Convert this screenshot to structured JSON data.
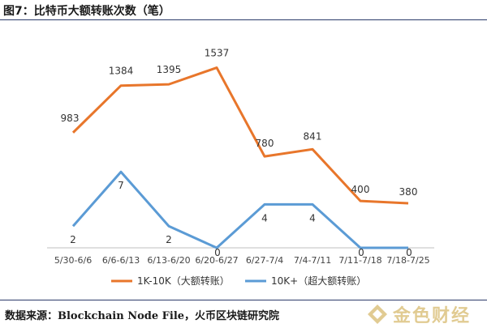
{
  "title": "图7：比特币大额转账次数（笔）",
  "source": "数据来源：Blockchain Node File，火币区块链研究院",
  "watermark": {
    "text": "金色财经",
    "icon": "golden-finance-logo-icon"
  },
  "colors": {
    "orange": "#E8762B",
    "blue": "#5B9BD5",
    "axis": "#bfbfbf"
  },
  "chart_data": {
    "type": "line",
    "categories": [
      "5/30-6/6",
      "6/6-6/13",
      "6/13-6/20",
      "6/20-6/27",
      "6/27-7/4",
      "7/4-7/11",
      "7/11-7/18",
      "7/18-7/25"
    ],
    "ylim": [
      0,
      1700
    ],
    "grid": false,
    "legend_position": "bottom",
    "series": [
      {
        "name": "1K-10K（大额转账）",
        "color": "#E8762B",
        "values": [
          983,
          1384,
          1395,
          1537,
          780,
          841,
          400,
          380
        ],
        "labels": [
          "983",
          "1384",
          "1395",
          "1537",
          "780",
          "841",
          "400",
          "380"
        ]
      },
      {
        "name": "10K+（超大额转账）",
        "color": "#5B9BD5",
        "values": [
          2,
          7,
          2,
          0,
          4,
          4,
          0,
          0
        ],
        "labels": [
          "2",
          "7",
          "2",
          "0",
          "4",
          "4",
          "0",
          "0"
        ]
      }
    ]
  }
}
